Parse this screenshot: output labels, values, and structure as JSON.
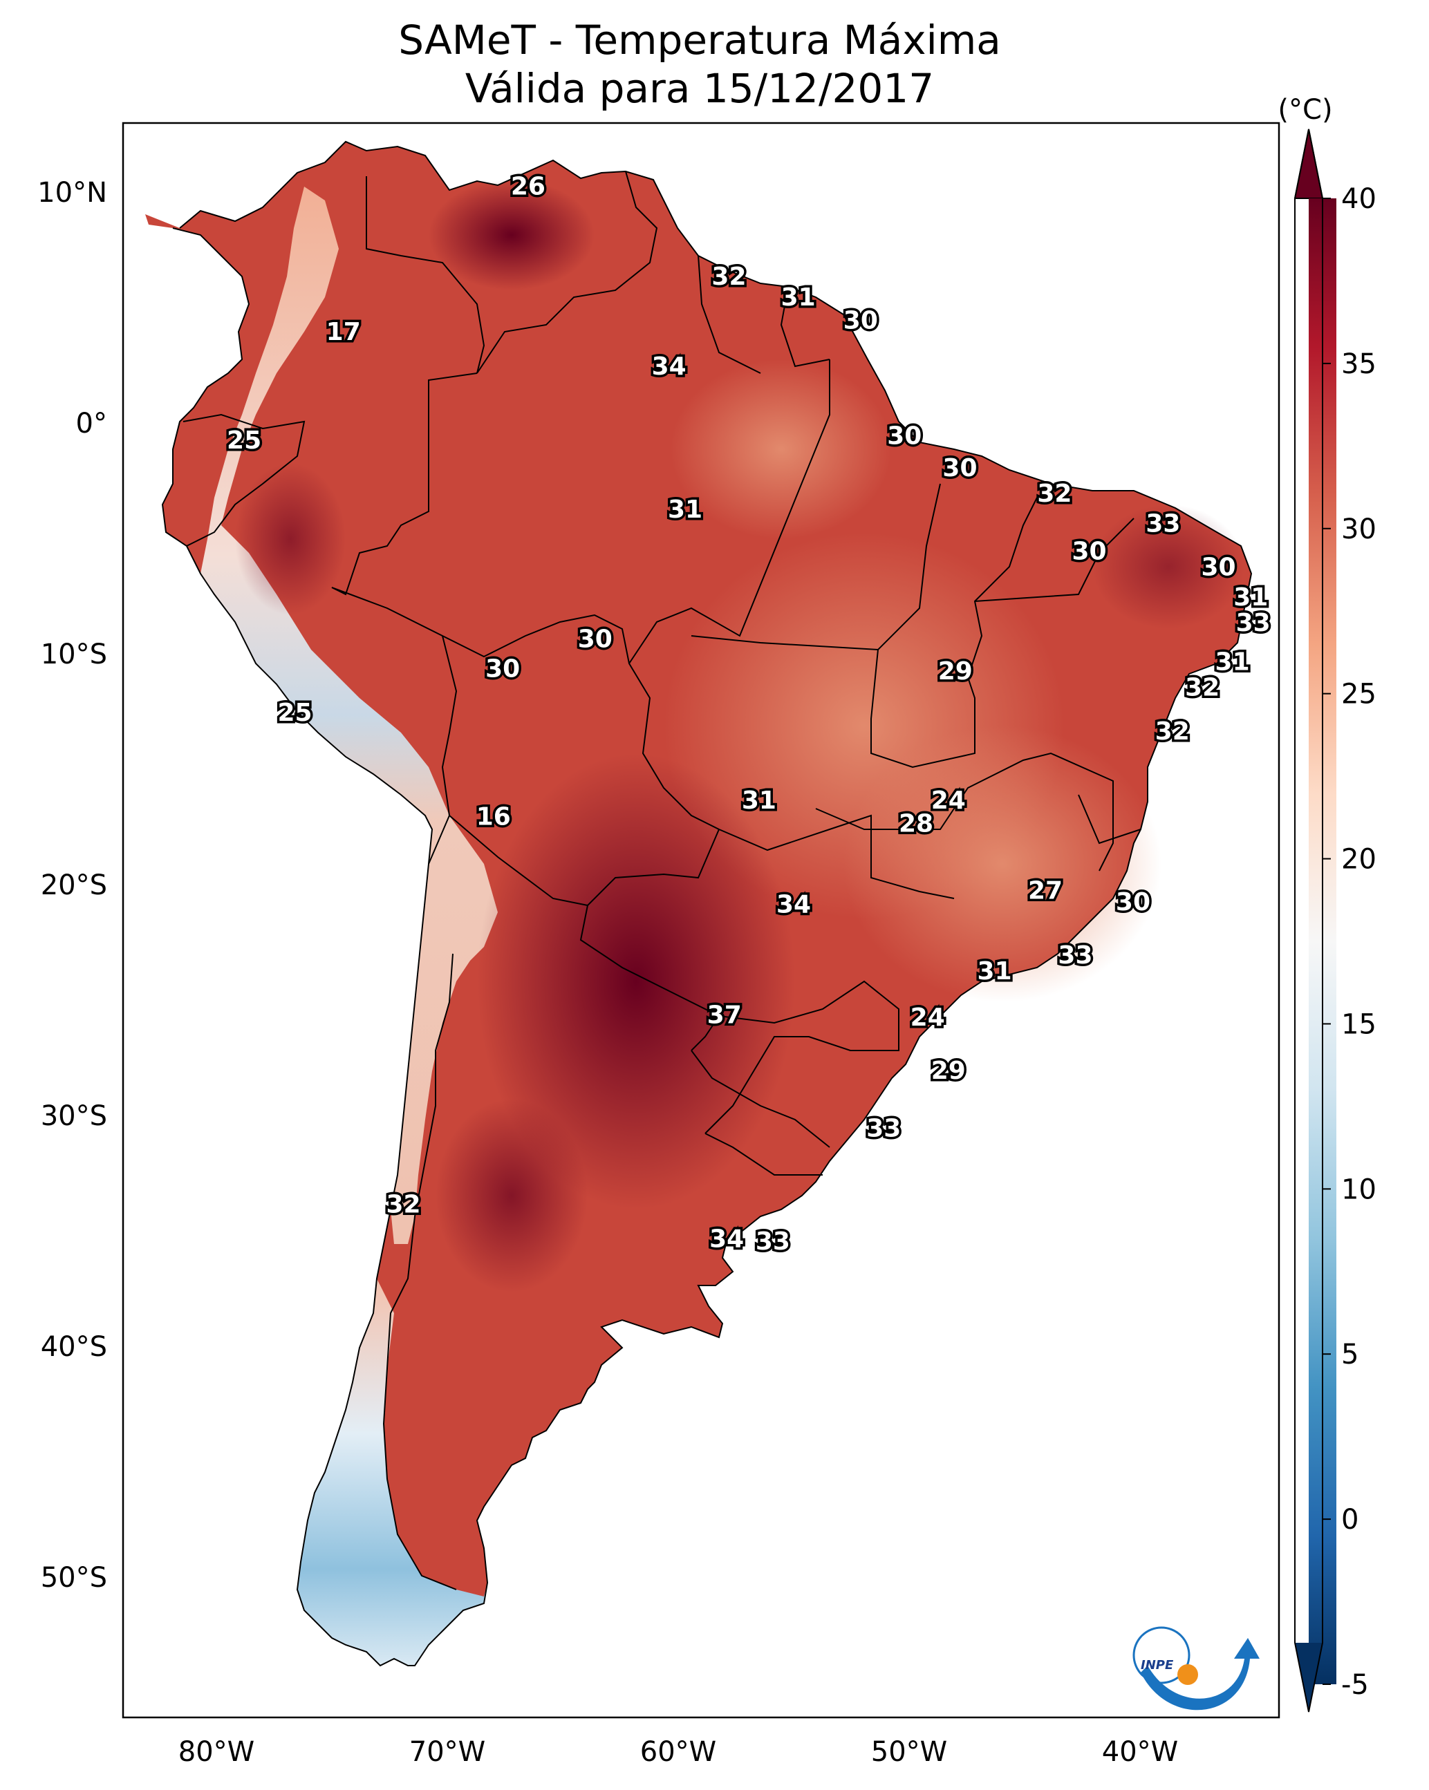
{
  "title": {
    "line1": "SAMeT - Temperatura Máxima",
    "line2": "Válida para 15/12/2017"
  },
  "map": {
    "lat_ticks": [
      "10°N",
      "0°",
      "10°S",
      "20°S",
      "30°S",
      "40°S",
      "50°S"
    ],
    "lon_ticks": [
      "80°W",
      "70°W",
      "60°W",
      "50°W",
      "40°W"
    ],
    "extent": {
      "lon": [
        -83,
        -33
      ],
      "lat": [
        -56,
        13
      ]
    },
    "labels": [
      {
        "value": "26",
        "lon": -66.5,
        "lat": 10.7
      },
      {
        "value": "32",
        "lon": -57.8,
        "lat": 6.8
      },
      {
        "value": "31",
        "lon": -54.8,
        "lat": 5.9
      },
      {
        "value": "30",
        "lon": -52.1,
        "lat": 4.9
      },
      {
        "value": "17",
        "lon": -74.5,
        "lat": 4.4
      },
      {
        "value": "34",
        "lon": -60.4,
        "lat": 2.9
      },
      {
        "value": "25",
        "lon": -78.8,
        "lat": -0.3
      },
      {
        "value": "30",
        "lon": -50.2,
        "lat": -0.1
      },
      {
        "value": "30",
        "lon": -47.8,
        "lat": -1.5
      },
      {
        "value": "32",
        "lon": -43.7,
        "lat": -2.6
      },
      {
        "value": "31",
        "lon": -59.7,
        "lat": -3.3
      },
      {
        "value": "33",
        "lon": -39.0,
        "lat": -3.9
      },
      {
        "value": "30",
        "lon": -42.2,
        "lat": -5.1
      },
      {
        "value": "30",
        "lon": -36.6,
        "lat": -5.8
      },
      {
        "value": "31",
        "lon": -35.2,
        "lat": -7.1
      },
      {
        "value": "33",
        "lon": -35.1,
        "lat": -8.2
      },
      {
        "value": "30",
        "lon": -63.6,
        "lat": -8.9
      },
      {
        "value": "30",
        "lon": -67.6,
        "lat": -10.2
      },
      {
        "value": "29",
        "lon": -48.0,
        "lat": -10.3
      },
      {
        "value": "31",
        "lon": -36.0,
        "lat": -9.9
      },
      {
        "value": "32",
        "lon": -37.3,
        "lat": -11.0
      },
      {
        "value": "25",
        "lon": -76.6,
        "lat": -12.1
      },
      {
        "value": "32",
        "lon": -38.6,
        "lat": -12.9
      },
      {
        "value": "31",
        "lon": -56.5,
        "lat": -15.9
      },
      {
        "value": "24",
        "lon": -48.3,
        "lat": -15.9
      },
      {
        "value": "28",
        "lon": -49.7,
        "lat": -16.9
      },
      {
        "value": "16",
        "lon": -68.0,
        "lat": -16.6
      },
      {
        "value": "27",
        "lon": -44.1,
        "lat": -19.8
      },
      {
        "value": "30",
        "lon": -40.3,
        "lat": -20.3
      },
      {
        "value": "34",
        "lon": -55.0,
        "lat": -20.4
      },
      {
        "value": "33",
        "lon": -42.8,
        "lat": -22.6
      },
      {
        "value": "31",
        "lon": -46.3,
        "lat": -23.3
      },
      {
        "value": "37",
        "lon": -58.0,
        "lat": -25.2
      },
      {
        "value": "24",
        "lon": -49.2,
        "lat": -25.3
      },
      {
        "value": "29",
        "lon": -48.3,
        "lat": -27.6
      },
      {
        "value": "33",
        "lon": -51.1,
        "lat": -30.1
      },
      {
        "value": "32",
        "lon": -71.9,
        "lat": -33.4
      },
      {
        "value": "34",
        "lon": -57.9,
        "lat": -34.9
      },
      {
        "value": "33",
        "lon": -55.9,
        "lat": -35.0
      }
    ]
  },
  "colorbar": {
    "unit": "(°C)",
    "ticks": [
      "40",
      "35",
      "30",
      "25",
      "20",
      "15",
      "10",
      "5",
      "0",
      "-5"
    ],
    "range": [
      -5,
      40
    ],
    "colors": [
      "#053061",
      "#2166ac",
      "#4393c3",
      "#92c5de",
      "#d1e5f0",
      "#f7f7f7",
      "#fddbc7",
      "#f4a582",
      "#d6604d",
      "#b2182b",
      "#67001f"
    ]
  },
  "logo": {
    "text": "INPE"
  }
}
